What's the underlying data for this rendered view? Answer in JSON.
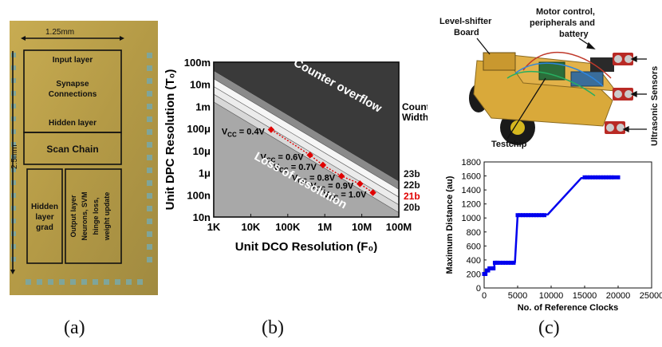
{
  "figure": {
    "captions": [
      "(a)",
      "(b)",
      "(c)"
    ]
  },
  "chip": {
    "width_label": "1.25mm",
    "height_label": "2.5mm",
    "blocks": {
      "input_layer": "Input layer",
      "synapse": [
        "Synapse",
        "Connections"
      ],
      "hidden_layer": "Hidden layer",
      "scan_chain": "Scan Chain",
      "hidden_grad": [
        "Hidden",
        "layer",
        "grad"
      ],
      "output_layer": [
        "Output layer",
        "Neurons, SVM",
        "hinge loss,",
        "weight update"
      ]
    },
    "colors": {
      "die": "#b9a048",
      "outline": "#1a1a1a"
    }
  },
  "robot": {
    "labels": {
      "level_shifter": [
        "Level-shifter",
        "Board"
      ],
      "motor": [
        "Motor control,",
        "peripherals and",
        "battery"
      ],
      "ultrasonic": "Ultrasonic Sensors",
      "testchip": "Testchip"
    }
  },
  "chart_data": [
    {
      "type": "area",
      "xlabel": "Unit DCO Resolution (F₀)",
      "ylabel": "Unit DPC Resolution (T₀)",
      "x_ticks": [
        "1K",
        "10K",
        "100K",
        "1M",
        "10M",
        "100M"
      ],
      "y_ticks": [
        "10n",
        "100n",
        "1μ",
        "10μ",
        "100μ",
        "1m",
        "10m",
        "100m"
      ],
      "x_range_log10": [
        3,
        8
      ],
      "y_range_log10": [
        -8,
        -1
      ],
      "regions": {
        "overflow": "Counter overflow",
        "loss": "Loss of resolution"
      },
      "counter_width_title": [
        "Counter",
        "Width"
      ],
      "counter_widths": [
        {
          "label": "23b",
          "color": "#111111"
        },
        {
          "label": "22b",
          "color": "#111111"
        },
        {
          "label": "21b",
          "color": "#e00000"
        },
        {
          "label": "20b",
          "color": "#111111"
        }
      ],
      "voltage_points": [
        {
          "label": "0.4V",
          "x_log10": 4.55,
          "y_log10": -4.05
        },
        {
          "label": "0.6V",
          "x_log10": 5.6,
          "y_log10": -5.2
        },
        {
          "label": "0.7V",
          "x_log10": 5.95,
          "y_log10": -5.65
        },
        {
          "label": "0.8V",
          "x_log10": 6.45,
          "y_log10": -6.15
        },
        {
          "label": "0.9V",
          "x_log10": 6.95,
          "y_log10": -6.5
        },
        {
          "label": "1.0V",
          "x_log10": 7.3,
          "y_log10": -6.9
        }
      ],
      "vcc_prefix": "V",
      "vcc_sub": "CC",
      "vcc_eq": " = ",
      "colors": {
        "overflow": "#3a3a3a",
        "loss": "#a8a8a8",
        "points": "#e00000"
      }
    },
    {
      "type": "line",
      "xlabel": "No. of Reference Clocks",
      "ylabel": "Maximum Distance (au)",
      "xlim": [
        0,
        25000
      ],
      "ylim": [
        0,
        1800
      ],
      "x_ticks": [
        0,
        5000,
        10000,
        15000,
        20000,
        25000
      ],
      "y_ticks": [
        0,
        200,
        400,
        600,
        800,
        1000,
        1200,
        1400,
        1600,
        1800
      ],
      "series": [
        {
          "color": "#0000ee",
          "points": [
            [
              0,
              200
            ],
            [
              300,
              200
            ],
            [
              350,
              250
            ],
            [
              700,
              250
            ],
            [
              750,
              280
            ],
            [
              1500,
              280
            ],
            [
              1550,
              360
            ],
            [
              4500,
              360
            ],
            [
              4550,
              370
            ],
            [
              4600,
              370
            ],
            [
              5000,
              1040
            ],
            [
              9000,
              1040
            ],
            [
              9050,
              1050
            ],
            [
              9500,
              1050
            ],
            [
              14500,
              1570
            ],
            [
              14700,
              1570
            ],
            [
              15000,
              1580
            ],
            [
              20000,
              1580
            ]
          ],
          "marker_x": [
            0,
            200,
            400,
            600,
            800,
            1000,
            1200,
            1400,
            1600,
            1800,
            2000,
            2400,
            2800,
            3200,
            3600,
            4000,
            4400,
            5000,
            5400,
            5800,
            6200,
            6600,
            7000,
            7400,
            7800,
            8200,
            8600,
            9000,
            15000,
            15400,
            15800,
            16200,
            16600,
            17000,
            17400,
            17800,
            18200,
            18600,
            19000,
            19400,
            20000
          ]
        }
      ]
    }
  ]
}
